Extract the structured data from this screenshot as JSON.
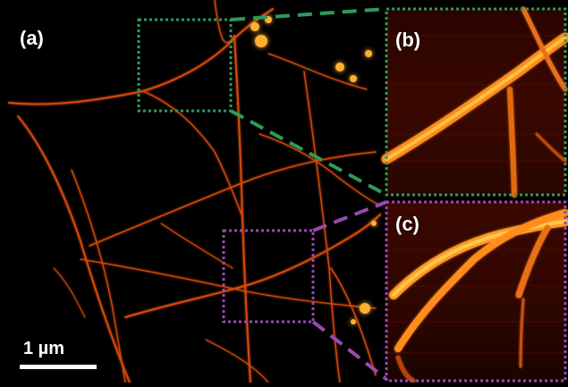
{
  "figure": {
    "panels": [
      {
        "id": "a",
        "label": "(a)"
      },
      {
        "id": "b",
        "label": "(b)"
      },
      {
        "id": "c",
        "label": "(c)"
      }
    ],
    "scale_bar": {
      "label": "1 µm"
    },
    "colors": {
      "background": "#000000",
      "filament": "#ff7a1a",
      "filament_bright": "#ffcc3a",
      "inset_b_frame": "#2e9a5a",
      "inset_c_frame": "#9a48b0"
    }
  }
}
